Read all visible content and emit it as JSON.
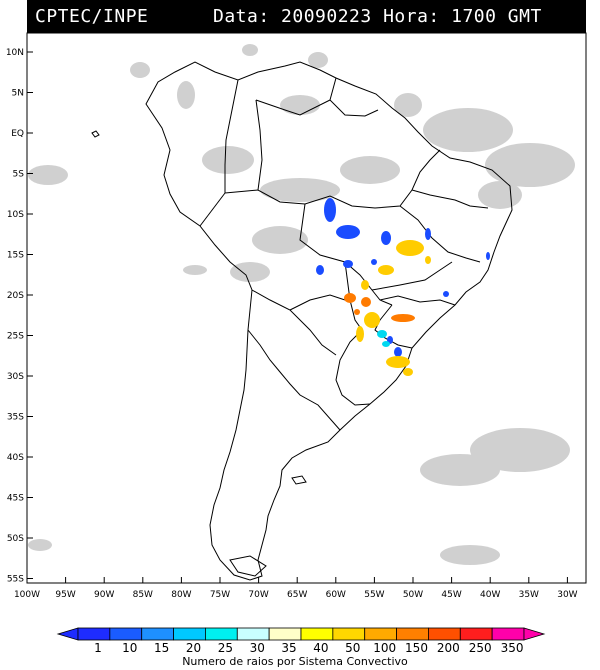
{
  "header": {
    "source": "CPTEC/INPE",
    "date_label": "Data:",
    "date_value": "20090223",
    "hour_label": "Hora:",
    "hour_value": "1700 GMT"
  },
  "map": {
    "lat_ticks": [
      "10N",
      "5N",
      "EQ",
      "5S",
      "10S",
      "15S",
      "20S",
      "25S",
      "30S",
      "35S",
      "40S",
      "45S",
      "50S",
      "55S"
    ],
    "lon_ticks": [
      "100W",
      "95W",
      "90W",
      "85W",
      "80W",
      "75W",
      "70W",
      "65W",
      "60W",
      "55W",
      "50W",
      "45W",
      "40W",
      "35W",
      "30W"
    ]
  },
  "colorbar": {
    "labels": [
      "1",
      "10",
      "15",
      "20",
      "25",
      "30",
      "35",
      "40",
      "50",
      "100",
      "150",
      "200",
      "250",
      "350"
    ],
    "colors": [
      "#1e2cff",
      "#1a5cff",
      "#1e90ff",
      "#00c8ff",
      "#00f0f0",
      "#c8ffff",
      "#ffffc8",
      "#ffff00",
      "#ffd700",
      "#ffaa00",
      "#ff8000",
      "#ff5000",
      "#ff1e1e",
      "#ff00aa"
    ],
    "caption": "Numero de raios por Sistema Convectivo"
  }
}
